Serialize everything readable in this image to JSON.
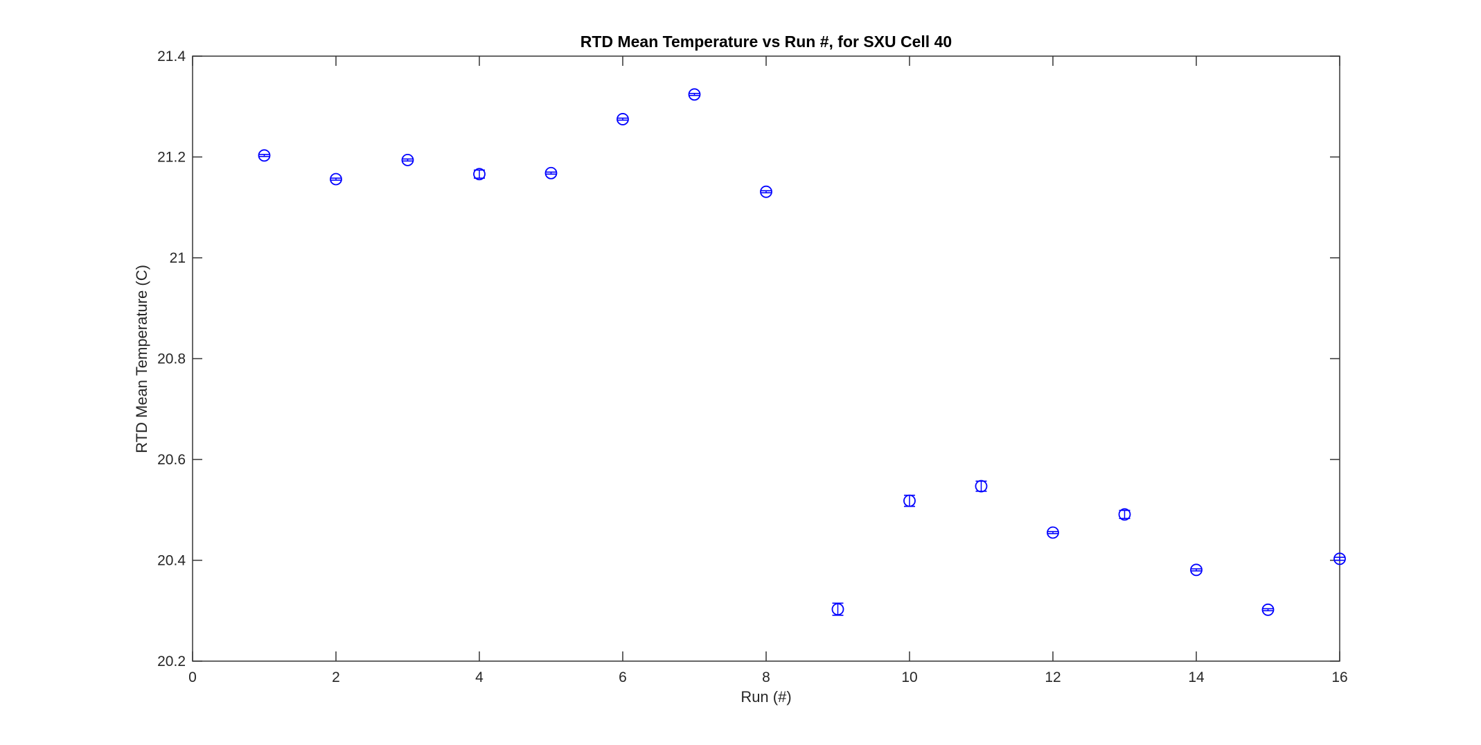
{
  "chart_data": {
    "type": "scatter",
    "subtype": "errorbar",
    "title": "RTD Mean Temperature vs Run #, for SXU Cell 40",
    "xlabel": "Run (#)",
    "ylabel": "RTD Mean Temperature (C)",
    "xlim": [
      0,
      16
    ],
    "ylim": [
      20.2,
      21.4
    ],
    "x_ticks": [
      0,
      2,
      4,
      6,
      8,
      10,
      12,
      14,
      16
    ],
    "x_tick_labels": [
      "0",
      "2",
      "4",
      "6",
      "8",
      "10",
      "12",
      "14",
      "16"
    ],
    "y_ticks": [
      20.2,
      20.4,
      20.6,
      20.8,
      21.0,
      21.2,
      21.4
    ],
    "y_tick_labels": [
      "20.2",
      "20.4",
      "20.6",
      "20.8",
      "21",
      "21.2",
      "21.4"
    ],
    "grid": false,
    "legend": null,
    "marker": "circle-open",
    "x": [
      1,
      2,
      3,
      4,
      5,
      6,
      7,
      8,
      9,
      10,
      11,
      12,
      13,
      14,
      15,
      16
    ],
    "y": [
      21.203,
      21.156,
      21.194,
      21.166,
      21.168,
      21.275,
      21.324,
      21.131,
      20.303,
      20.518,
      20.547,
      20.455,
      20.491,
      20.381,
      20.302,
      20.403
    ],
    "yerr": [
      0.002,
      0.002,
      0.002,
      0.008,
      0.002,
      0.002,
      0.002,
      0.002,
      0.012,
      0.011,
      0.01,
      0.002,
      0.008,
      0.002,
      0.002,
      0.003
    ],
    "colors": {
      "series": "#0000ff",
      "axis_box": "#333333",
      "tick_text": "#262626",
      "title_text": "#000000",
      "background": "#ffffff"
    }
  }
}
